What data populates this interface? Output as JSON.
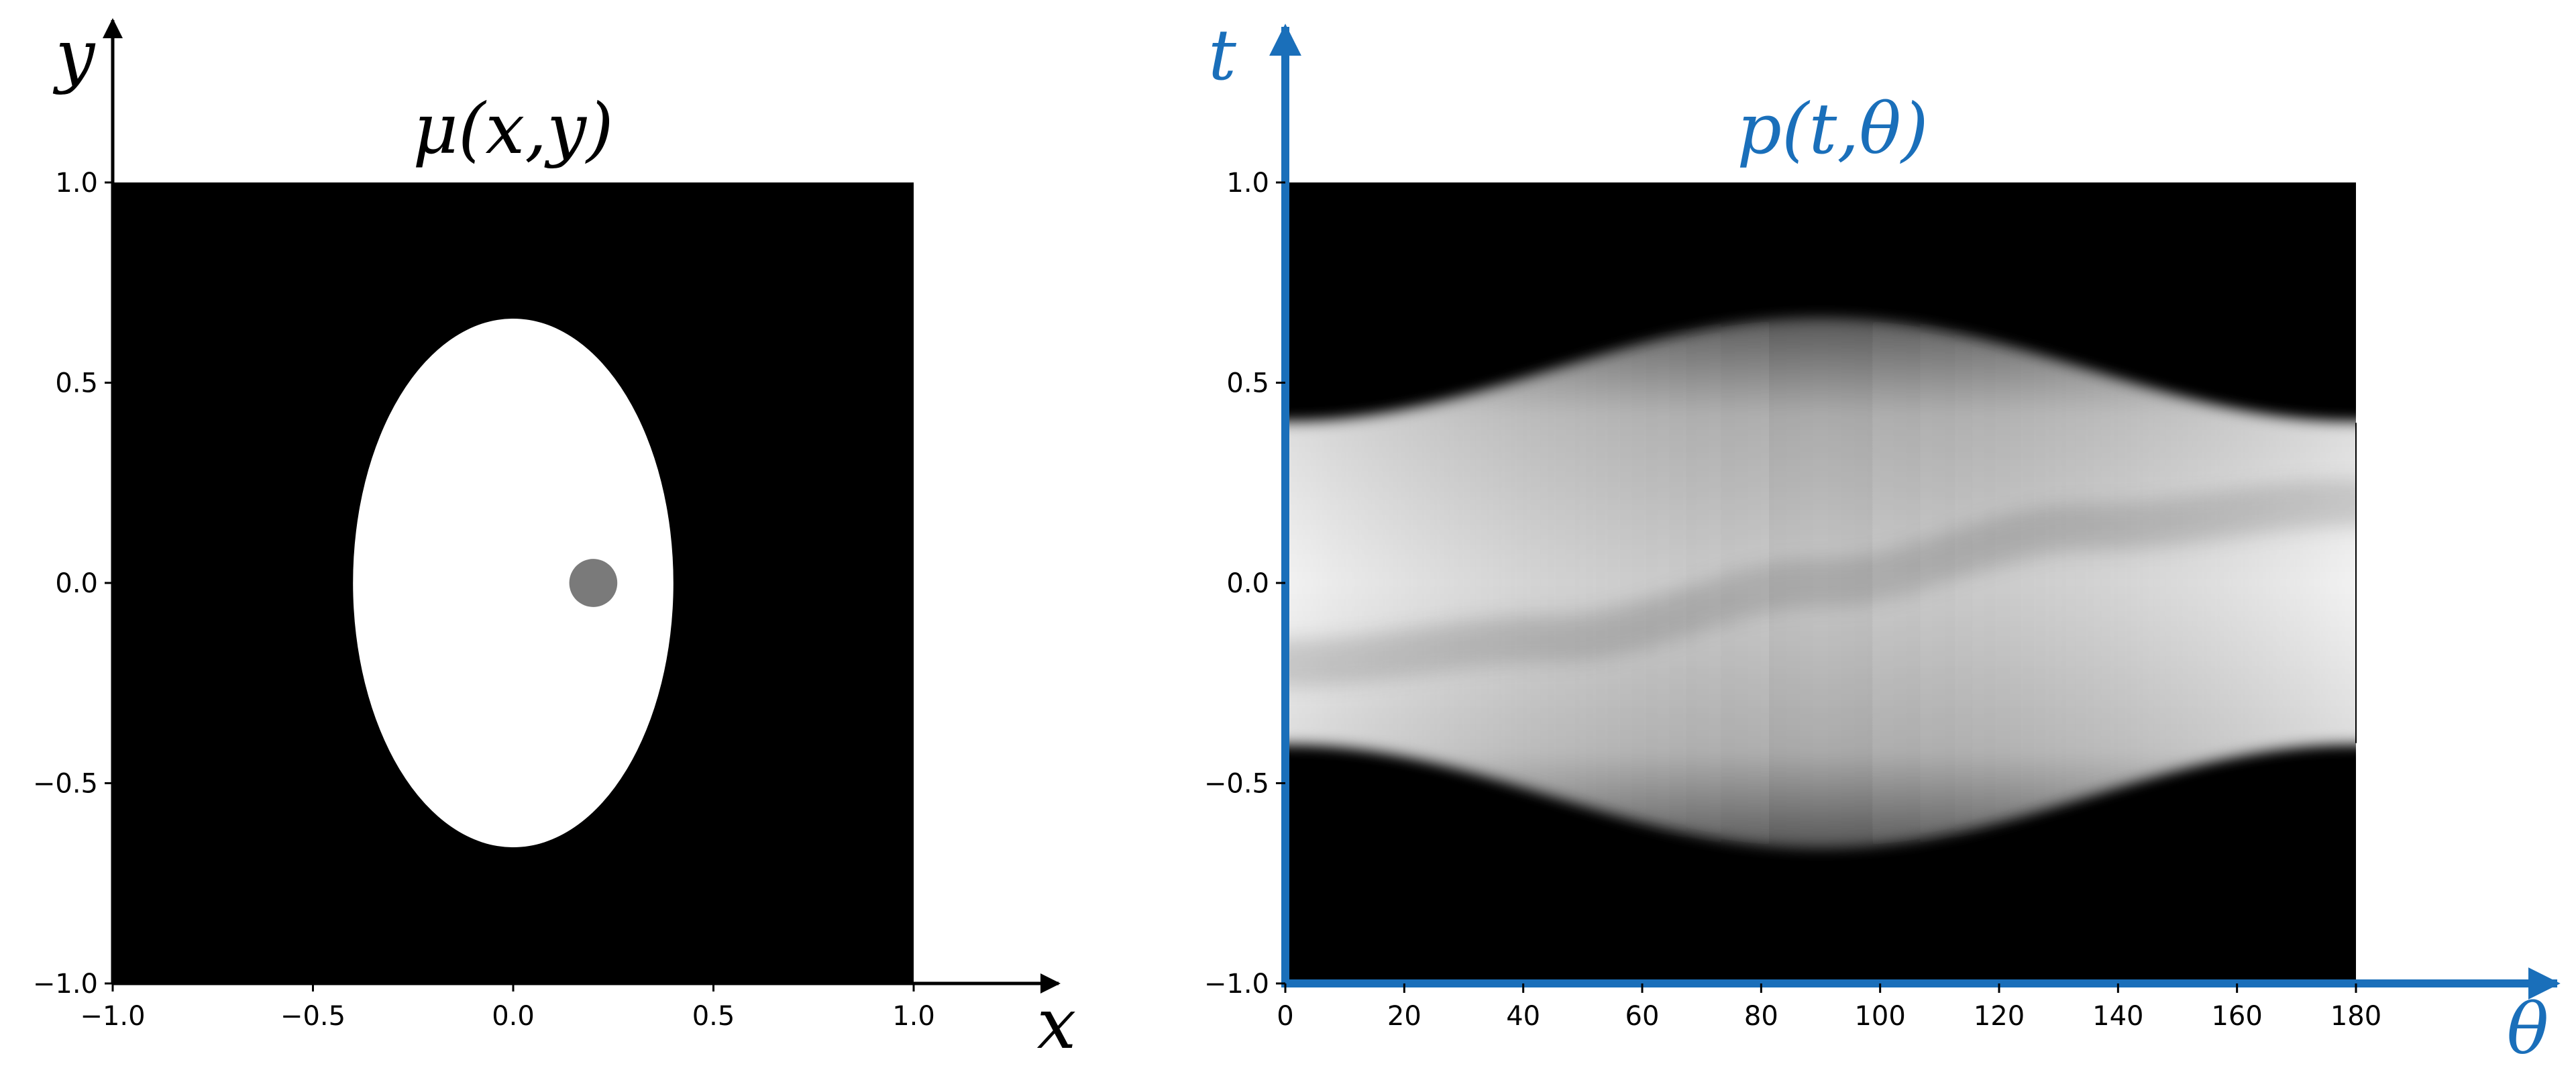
{
  "chart_data": [
    {
      "type": "heatmap",
      "title": "μ(x,y)",
      "xlabel": "x",
      "ylabel": "y",
      "xlim": [
        -1.0,
        1.0
      ],
      "ylim": [
        -1.0,
        1.0
      ],
      "x_ticks": [
        "−1.0",
        "−0.5",
        "0.0",
        "0.5",
        "1.0"
      ],
      "y_ticks": [
        "1.0",
        "0.5",
        "0.0",
        "−0.5",
        "−1.0"
      ],
      "colormap": "gray",
      "axis_color": "#000000",
      "background_value": 0.0,
      "shapes": [
        {
          "shape": "ellipse",
          "center": [
            0.0,
            0.0
          ],
          "semi_axes": [
            0.4,
            0.66
          ],
          "value": 1.0
        },
        {
          "shape": "disk",
          "center": [
            0.2,
            0.0
          ],
          "radius": 0.06,
          "value": 0.5
        }
      ]
    },
    {
      "type": "heatmap",
      "title": "p(t,θ)",
      "xlabel": "θ",
      "ylabel": "t",
      "xlim": [
        0,
        180
      ],
      "ylim": [
        -1.0,
        1.0
      ],
      "x_ticks": [
        "0",
        "20",
        "40",
        "60",
        "80",
        "100",
        "120",
        "140",
        "160",
        "180"
      ],
      "y_ticks": [
        "1.0",
        "0.5",
        "0.0",
        "−0.5",
        "−1.0"
      ],
      "colormap": "gray",
      "axis_color": "#1a6fba",
      "support_halfwidth": {
        "theta": [
          0,
          90,
          180
        ],
        "t": [
          0.4,
          0.66,
          0.4
        ]
      },
      "sinusoid_track": {
        "theta": [
          0,
          45,
          90,
          135,
          180
        ],
        "t": [
          -0.2,
          -0.14,
          0.0,
          0.14,
          0.2
        ],
        "value": "darker"
      }
    }
  ]
}
